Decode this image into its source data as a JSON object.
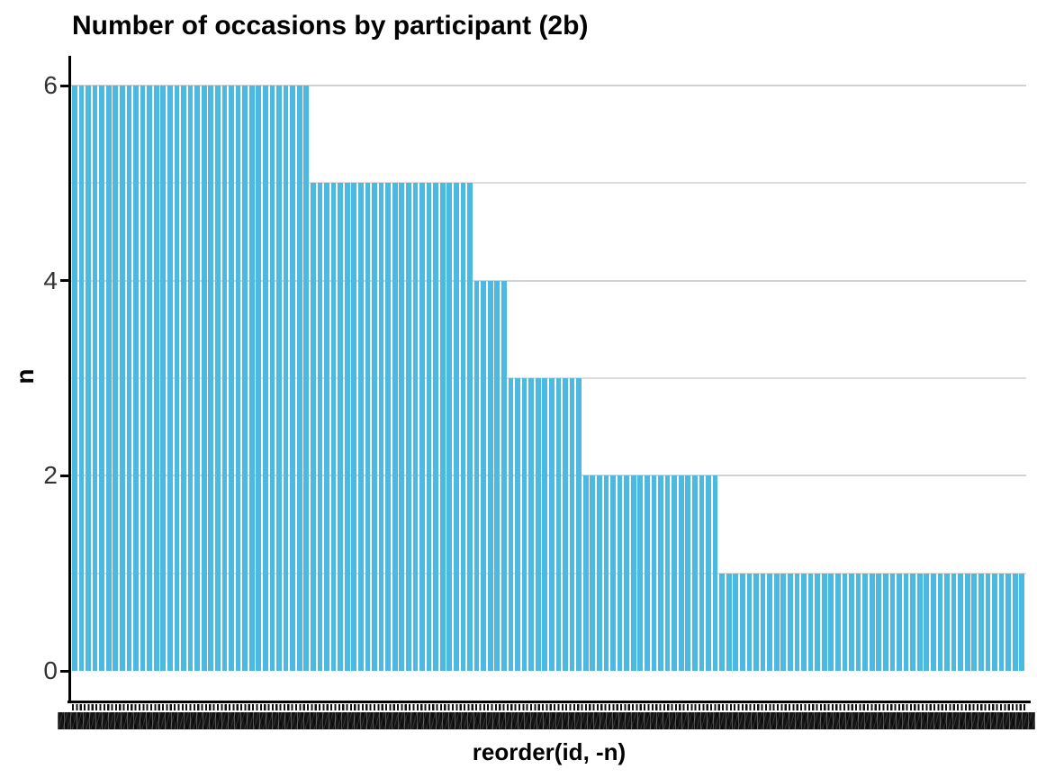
{
  "chart_data": {
    "type": "bar",
    "title": "Number of occasions by participant (2b)",
    "xlabel": "reorder(id, -n)",
    "ylabel": "n",
    "ylim": [
      0,
      6
    ],
    "yticks": [
      0,
      2,
      4,
      6
    ],
    "gridline_levels": [
      1,
      2,
      3,
      4,
      5,
      6
    ],
    "legend": false,
    "bar_color": "#4CB9E3",
    "x_categories_visible": false,
    "x_tick_labels_state": "overlapping-illegible participant ids",
    "total_bars": 140,
    "segments": [
      {
        "n_value": 6,
        "participants": 35
      },
      {
        "n_value": 5,
        "participants": 24
      },
      {
        "n_value": 4,
        "participants": 5
      },
      {
        "n_value": 3,
        "participants": 11
      },
      {
        "n_value": 2,
        "participants": 20
      },
      {
        "n_value": 1,
        "participants": 45
      }
    ]
  },
  "colors": {
    "background": "#ffffff",
    "bar_fill": "#4CB9E3",
    "gridline_major": "#d2d2d2",
    "gridline_minor": "#dcdcdc",
    "axis_line": "#000000",
    "tick_label": "#333333",
    "title_text": "#000000"
  }
}
